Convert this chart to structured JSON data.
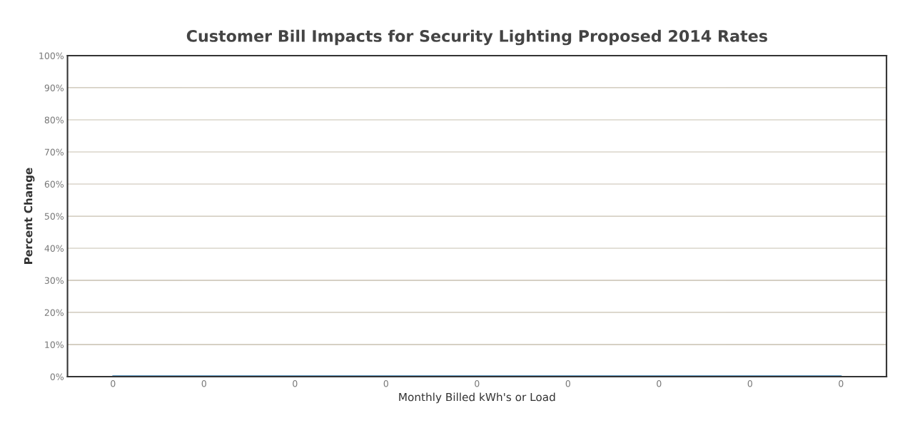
{
  "chart_data": {
    "type": "line",
    "title": "Customer Bill Impacts for Security Lighting Proposed 2014 Rates",
    "xlabel": "Monthly Billed kWh's or Load",
    "ylabel": "Percent Change",
    "categories": [
      "0",
      "0",
      "0",
      "0",
      "0",
      "0",
      "0",
      "0",
      "0"
    ],
    "series": [
      {
        "color": "#2e7bb0",
        "values": [
          0,
          0,
          0,
          0,
          0,
          0,
          0,
          0,
          0
        ]
      }
    ],
    "ylim": [
      0,
      1
    ],
    "yticks": [
      {
        "value": 0,
        "label": "0%"
      },
      {
        "value": 0.1,
        "label": "10%"
      },
      {
        "value": 0.2,
        "label": "20%"
      },
      {
        "value": 0.3,
        "label": "30%"
      },
      {
        "value": 0.4,
        "label": "40%"
      },
      {
        "value": 0.5,
        "label": "50%"
      },
      {
        "value": 0.6,
        "label": "60%"
      },
      {
        "value": 0.7,
        "label": "70%"
      },
      {
        "value": 0.8,
        "label": "80%"
      },
      {
        "value": 0.9,
        "label": "90%"
      },
      {
        "value": 1,
        "label": "100%"
      }
    ],
    "grid": "y",
    "marker": "none",
    "line_style": "solid"
  }
}
